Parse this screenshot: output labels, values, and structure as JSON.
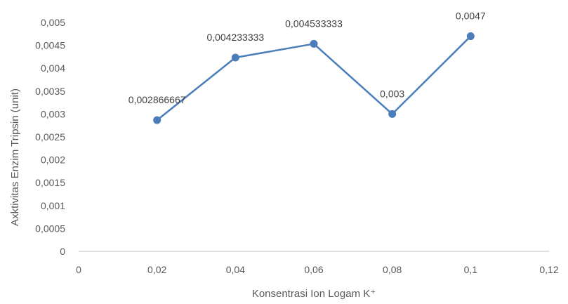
{
  "chart_data": {
    "type": "line",
    "xlabel": "Konsentrasi Ion Logam K⁺",
    "ylabel": "Axktivitas Enzim Tripsin (unit)",
    "xlim": [
      0,
      0.12
    ],
    "ylim": [
      0,
      0.005
    ],
    "x_ticks": [
      0,
      0.02,
      0.04,
      0.06,
      0.08,
      0.1,
      0.12
    ],
    "x_tick_labels": [
      "0",
      "0,02",
      "0,04",
      "0,06",
      "0,08",
      "0,1",
      "0,12"
    ],
    "y_ticks": [
      0,
      0.0005,
      0.001,
      0.0015,
      0.002,
      0.0025,
      0.003,
      0.0035,
      0.004,
      0.0045,
      0.005
    ],
    "y_tick_labels": [
      "0",
      "0,0005",
      "0,001",
      "0,0015",
      "0,002",
      "0,0025",
      "0,003",
      "0,0035",
      "0,004",
      "0,0045",
      "0,005"
    ],
    "grid": false,
    "legend": "none",
    "series": [
      {
        "x": [
          0.02,
          0.04,
          0.06,
          0.08,
          0.1
        ],
        "y": [
          0.002866667,
          0.004233333,
          0.004533333,
          0.003,
          0.0047
        ],
        "data_labels": [
          "0,002866667",
          "0,004233333",
          "0,004533333",
          "0,003",
          "0,0047"
        ],
        "color": "#4a7ebb"
      }
    ],
    "axis_color": "#bfbfbf"
  }
}
